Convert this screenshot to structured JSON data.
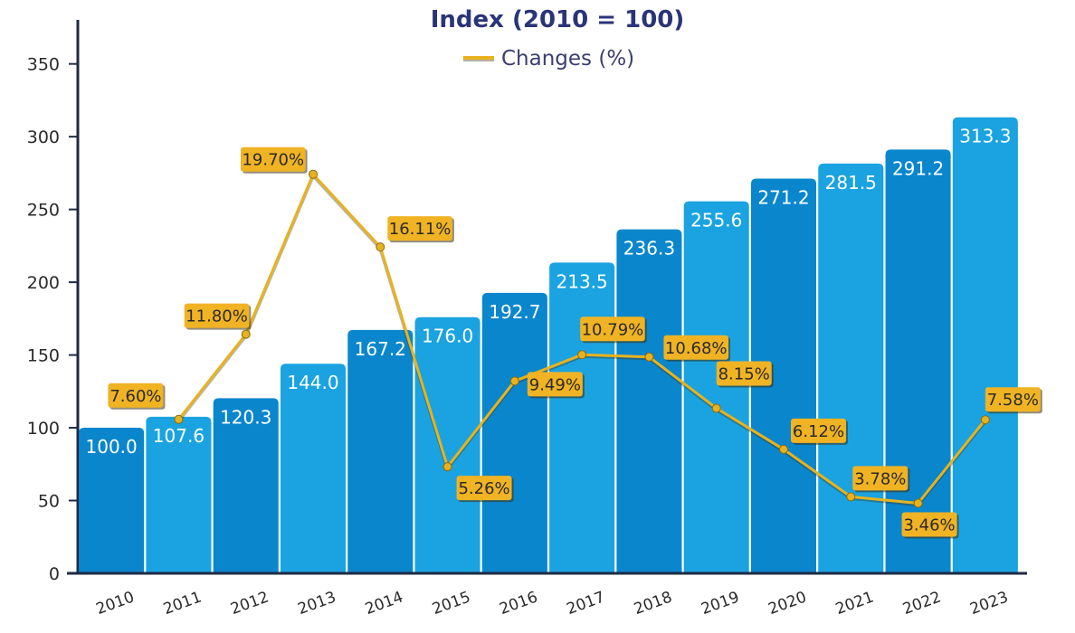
{
  "chart_data": {
    "type": "bar",
    "title": "Index (2010 = 100)",
    "categories": [
      "2010",
      "2011",
      "2012",
      "2013",
      "2014",
      "2015",
      "2016",
      "2017",
      "2018",
      "2019",
      "2020",
      "2021",
      "2022",
      "2023"
    ],
    "series": [
      {
        "type": "bar",
        "values": [
          100.0,
          107.6,
          120.3,
          144.0,
          167.2,
          176.0,
          192.7,
          213.5,
          236.3,
          255.6,
          271.2,
          281.5,
          291.2,
          313.3
        ],
        "labels": [
          "100.0",
          "107.6",
          "120.3",
          "144.0",
          "167.2",
          "176.0",
          "192.7",
          "213.5",
          "236.3",
          "255.6",
          "271.2",
          "281.5",
          "291.2",
          "313.3"
        ],
        "colors": [
          "#0a86cc",
          "#1aa3e0"
        ]
      },
      {
        "name": "Changes (%)",
        "type": "line",
        "x": [
          "2011",
          "2012",
          "2013",
          "2014",
          "2015",
          "2016",
          "2017",
          "2018",
          "2019",
          "2020",
          "2021",
          "2022",
          "2023"
        ],
        "values": [
          7.6,
          11.8,
          19.7,
          16.11,
          5.26,
          9.49,
          10.79,
          10.68,
          8.15,
          6.12,
          3.78,
          3.46,
          7.58
        ],
        "labels": [
          "7.60%",
          "11.80%",
          "19.70%",
          "16.11%",
          "5.26%",
          "9.49%",
          "10.79%",
          "10.68%",
          "8.15%",
          "6.12%",
          "3.78%",
          "3.46%",
          "7.58%"
        ],
        "color": "#e8b21e"
      }
    ],
    "y_ticks": [
      "0",
      "50",
      "100",
      "150",
      "200",
      "250",
      "300",
      "350"
    ],
    "ylim": [
      0,
      370
    ],
    "legend": {
      "entries": [
        "Changes (%)"
      ],
      "position": "top-center"
    },
    "grid": false
  }
}
